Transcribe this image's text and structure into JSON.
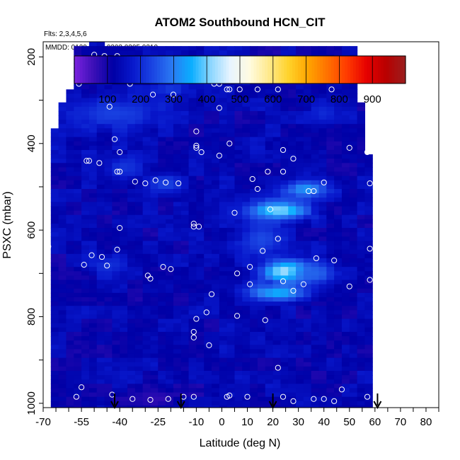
{
  "chart_data": {
    "type": "heatmap",
    "title": "ATOM2 Southbound HCN_CIT",
    "flights_note": "Flts: 2,3,4,5,6",
    "dates_note": "MMDD: 0129,0201,0203,0205,0210",
    "xlabel": "Latitude (deg N)",
    "ylabel": "PSXC (mbar)",
    "xlim": [
      -70,
      85
    ],
    "ylim": [
      1010,
      165
    ],
    "y_reversed": true,
    "x_ticks": [
      "-70",
      "-55",
      "-40",
      "-25",
      "-10",
      "0",
      "10",
      "20",
      "30",
      "40",
      "50",
      "60",
      "70",
      "80"
    ],
    "y_ticks": [
      "200",
      "400",
      "600",
      "800",
      "1000"
    ],
    "colorbar": {
      "range": [
        0,
        1000
      ],
      "tick_labels": [
        "100",
        "200",
        "300",
        "400",
        "500",
        "600",
        "700",
        "800",
        "900"
      ],
      "colors": [
        "#7a22e0",
        "#3a0fb6",
        "#0000a6",
        "#0818cc",
        "#1a44e2",
        "#2a78f2",
        "#0aaeff",
        "#8cd6ff",
        "#e8f4ff",
        "#fffbe0",
        "#ffe98a",
        "#ffd22a",
        "#ffa400",
        "#ff7000",
        "#ff3a00",
        "#e60000",
        "#b80000",
        "#9a1f1f"
      ]
    },
    "background_value": 130,
    "coverage": [
      {
        "p": 175,
        "lat_min": -52,
        "lat_max": -46
      },
      {
        "p": 215,
        "lat_min": -57,
        "lat_max": 52
      },
      {
        "p": 240,
        "lat_min": -58,
        "lat_max": 52
      },
      {
        "p": 270,
        "lat_min": -59,
        "lat_max": 53
      },
      {
        "p": 300,
        "lat_min": -61,
        "lat_max": 54
      },
      {
        "p": 330,
        "lat_min": -63,
        "lat_max": 55
      },
      {
        "p": 360,
        "lat_min": -65,
        "lat_max": 56
      },
      {
        "p": 390,
        "lat_min": -66,
        "lat_max": 57
      },
      {
        "p": 420,
        "lat_min": -68,
        "lat_max": 57
      },
      {
        "p": 450,
        "lat_min": -68,
        "lat_max": 58
      },
      {
        "p": 480,
        "lat_min": -68,
        "lat_max": 58
      },
      {
        "p": 1010,
        "lat_min": -68,
        "lat_max": 58
      }
    ],
    "features": [
      {
        "lat": 22,
        "p": 555,
        "dlat": 12,
        "dp": 22,
        "value": 430
      },
      {
        "lat": 33,
        "p": 505,
        "dlat": 9,
        "dp": 20,
        "value": 330
      },
      {
        "lat": 26,
        "p": 695,
        "dlat": 9,
        "dp": 26,
        "value": 500
      },
      {
        "lat": 22,
        "p": 745,
        "dlat": 12,
        "dp": 20,
        "value": 360
      },
      {
        "lat": 36,
        "p": 700,
        "dlat": 10,
        "dp": 28,
        "value": 270
      },
      {
        "lat": 16,
        "p": 620,
        "dlat": 10,
        "dp": 45,
        "value": 240
      },
      {
        "lat": -42,
        "p": 330,
        "dlat": 18,
        "dp": 40,
        "value": 230
      },
      {
        "lat": -20,
        "p": 275,
        "dlat": 8,
        "dp": 20,
        "value": 220
      },
      {
        "lat": -22,
        "p": 495,
        "dlat": 8,
        "dp": 25,
        "value": 230
      },
      {
        "lat": -38,
        "p": 455,
        "dlat": 8,
        "dp": 28,
        "value": 215
      },
      {
        "lat": -45,
        "p": 680,
        "dlat": 8,
        "dp": 25,
        "value": 210
      },
      {
        "lat": 40,
        "p": 330,
        "dlat": 6,
        "dp": 28,
        "value": 200
      },
      {
        "lat": -25,
        "p": 990,
        "dlat": 8,
        "dp": 18,
        "value": 65
      },
      {
        "lat": -38,
        "p": 992,
        "dlat": 10,
        "dp": 16,
        "value": 85
      }
    ],
    "points": [
      [
        -50,
        195
      ],
      [
        -46,
        198
      ],
      [
        -41,
        198
      ],
      [
        -53,
        238
      ],
      [
        -45,
        238
      ],
      [
        -42,
        238
      ],
      [
        -56,
        262
      ],
      [
        -36,
        262
      ],
      [
        -27,
        287
      ],
      [
        -19,
        287
      ],
      [
        -44,
        315
      ],
      [
        -11,
        218
      ],
      [
        -11,
        218
      ],
      [
        -3,
        262
      ],
      [
        -1,
        262
      ],
      [
        -1,
        318
      ],
      [
        2,
        275
      ],
      [
        3,
        275
      ],
      [
        7,
        275
      ],
      [
        14,
        275
      ],
      [
        22,
        275
      ],
      [
        36,
        252
      ],
      [
        43,
        275
      ],
      [
        51,
        240
      ],
      [
        55,
        255
      ],
      [
        -42,
        390
      ],
      [
        -40,
        420
      ],
      [
        -52,
        440
      ],
      [
        -53,
        440
      ],
      [
        -48,
        445
      ],
      [
        -41,
        465
      ],
      [
        -40,
        465
      ],
      [
        -34,
        488
      ],
      [
        -30,
        492
      ],
      [
        -26,
        485
      ],
      [
        -22,
        490
      ],
      [
        -17,
        492
      ],
      [
        -10,
        372
      ],
      [
        -10,
        405
      ],
      [
        -10,
        410
      ],
      [
        -8,
        420
      ],
      [
        -1,
        428
      ],
      [
        3,
        400
      ],
      [
        12,
        482
      ],
      [
        14,
        505
      ],
      [
        18,
        465
      ],
      [
        24,
        465
      ],
      [
        24,
        415
      ],
      [
        28,
        435
      ],
      [
        34,
        510
      ],
      [
        36,
        510
      ],
      [
        40,
        490
      ],
      [
        50,
        410
      ],
      [
        57,
        420
      ],
      [
        58,
        492
      ],
      [
        -51,
        658
      ],
      [
        -47,
        662
      ],
      [
        -45,
        682
      ],
      [
        -41,
        645
      ],
      [
        -40,
        595
      ],
      [
        -29,
        705
      ],
      [
        -28,
        712
      ],
      [
        -23,
        685
      ],
      [
        -20,
        690
      ],
      [
        -11,
        592
      ],
      [
        -11,
        585
      ],
      [
        -9,
        592
      ],
      [
        -4,
        748
      ],
      [
        -6,
        790
      ],
      [
        -10,
        805
      ],
      [
        -11,
        835
      ],
      [
        -11,
        848
      ],
      [
        -5,
        866
      ],
      [
        5,
        560
      ],
      [
        6,
        700
      ],
      [
        11,
        685
      ],
      [
        11,
        725
      ],
      [
        16,
        648
      ],
      [
        17,
        808
      ],
      [
        6,
        798
      ],
      [
        19,
        552
      ],
      [
        22,
        620
      ],
      [
        24,
        718
      ],
      [
        28,
        740
      ],
      [
        32,
        725
      ],
      [
        37,
        665
      ],
      [
        44,
        670
      ],
      [
        50,
        730
      ],
      [
        58,
        715
      ],
      [
        58,
        643
      ],
      [
        -68,
        638
      ],
      [
        -54,
        680
      ],
      [
        -55,
        963
      ],
      [
        -57,
        985
      ],
      [
        -69,
        975
      ],
      [
        -43,
        980
      ],
      [
        -35,
        990
      ],
      [
        -28,
        992
      ],
      [
        -21,
        990
      ],
      [
        -15,
        985
      ],
      [
        -11,
        985
      ],
      [
        2,
        985
      ],
      [
        3,
        982
      ],
      [
        10,
        985
      ],
      [
        22,
        918
      ],
      [
        24,
        985
      ],
      [
        28,
        995
      ],
      [
        36,
        990
      ],
      [
        40,
        990
      ],
      [
        44,
        995
      ],
      [
        47,
        968
      ],
      [
        57,
        985
      ]
    ],
    "arrows": [
      -42,
      -16,
      20,
      61
    ]
  }
}
